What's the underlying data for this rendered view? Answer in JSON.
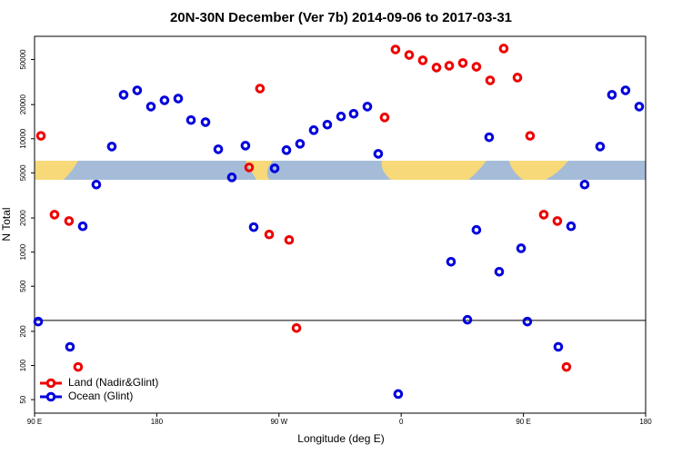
{
  "chart_data": {
    "type": "scatter",
    "title": "20N-30N December (Ver 7b)   2014-09-06 to 2017-03-31",
    "x_label": "Longitude (deg E)",
    "y_label": "N Total",
    "log_y": true,
    "xlim": [
      90,
      540
    ],
    "ylim": [
      38,
      80000
    ],
    "xticks": [
      {
        "value": 90,
        "label": "90 E"
      },
      {
        "value": 180,
        "label": "180"
      },
      {
        "value": 270,
        "label": "90 W"
      },
      {
        "value": 360,
        "label": "0"
      },
      {
        "value": 450,
        "label": "90 E"
      },
      {
        "value": 540,
        "label": "180"
      }
    ],
    "yticks": [
      50,
      100,
      200,
      500,
      1000,
      2000,
      5000,
      10000,
      20000,
      50000
    ],
    "reference_line": 250,
    "legend_position": "bottom-left",
    "series": [
      {
        "name": "Land (Nadir&Glint)",
        "color": "#ee0000",
        "x": [
          94.7,
          104.7,
          115.4,
          122.1,
          248,
          256,
          262.8,
          277.5,
          282.9,
          347.8,
          355.8,
          365.9,
          375.9,
          386,
          395.4,
          405.4,
          415.4,
          425.5,
          435.5,
          445.6,
          454.9,
          465,
          475,
          481.7
        ],
        "values": [
          10600,
          2140,
          1880,
          97,
          5580,
          27700,
          1430,
          1280,
          214,
          15400,
          61200,
          54800,
          49100,
          42400,
          44000,
          46500,
          43100,
          32700,
          62400,
          34600,
          10600,
          2140,
          1880,
          97
        ]
      },
      {
        "name": "Ocean (Glint)",
        "color": "#0000dd",
        "x": [
          92.7,
          116.1,
          125.5,
          135.5,
          146.9,
          155.6,
          165.6,
          175.7,
          185.7,
          195.8,
          205.2,
          215.9,
          225.3,
          235.3,
          245.3,
          251.4,
          266.8,
          275.5,
          285.5,
          295.6,
          305.6,
          315.7,
          325,
          335.1,
          343.1,
          357.8,
          396.7,
          408.8,
          415.4,
          424.8,
          432.2,
          448.3,
          452.9,
          475.7,
          485.1,
          495.1,
          506.5,
          515.2,
          525.2,
          535.3
        ],
        "values": [
          244,
          146,
          1690,
          3940,
          8530,
          24400,
          26700,
          19200,
          21800,
          22600,
          14600,
          14000,
          8070,
          4560,
          8690,
          1660,
          5480,
          7930,
          9020,
          11900,
          13300,
          15700,
          16600,
          19200,
          7360,
          56,
          822,
          253,
          1570,
          10300,
          671,
          1080,
          244,
          146,
          1690,
          3940,
          8530,
          24400,
          26700,
          19200
        ]
      }
    ]
  }
}
